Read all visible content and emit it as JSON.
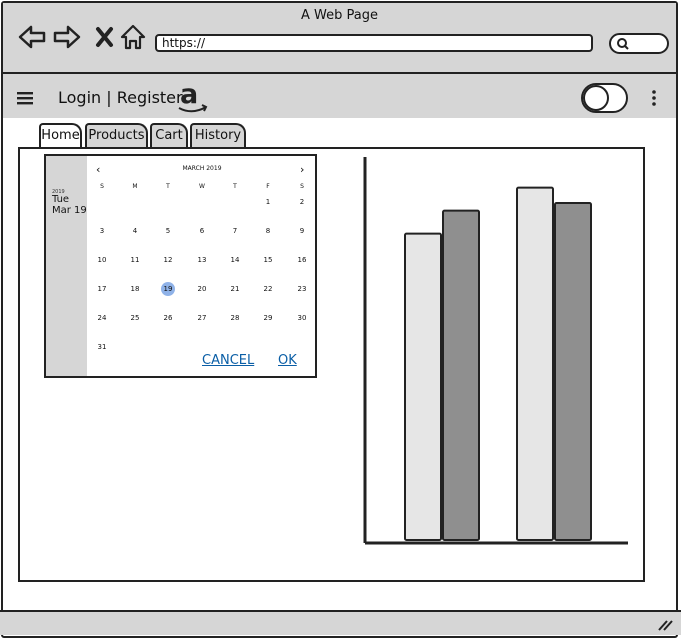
{
  "window": {
    "title": "A Web Page"
  },
  "address_bar": {
    "url": "https://"
  },
  "app": {
    "title": "Login | Register",
    "brand_logo": "a",
    "colors": {
      "chrome_gray": "#d6d6d6",
      "link_blue": "#0a5ea6",
      "bar_light": "#e6e6e6",
      "bar_dark": "#8f8f8f"
    }
  },
  "tabs": [
    {
      "label": "Home"
    },
    {
      "label": "Products"
    },
    {
      "label": "Cart"
    },
    {
      "label": "History"
    }
  ],
  "datepicker": {
    "year": "2019",
    "weekday": "Tue",
    "date": "Mar 19",
    "month_label": "MARCH 2019",
    "weekday_headers": [
      "S",
      "M",
      "T",
      "W",
      "T",
      "F",
      "S"
    ],
    "weeks": [
      [
        "",
        "",
        "",
        "",
        "",
        "1",
        "2"
      ],
      [
        "3",
        "4",
        "5",
        "6",
        "7",
        "8",
        "9"
      ],
      [
        "10",
        "11",
        "12",
        "13",
        "14",
        "15",
        "16"
      ],
      [
        "17",
        "18",
        "19",
        "20",
        "21",
        "22",
        "23"
      ],
      [
        "24",
        "25",
        "26",
        "27",
        "28",
        "29",
        "30"
      ],
      [
        "31",
        "",
        "",
        "",
        "",
        "",
        ""
      ]
    ],
    "selected_day": "19",
    "cancel_label": "CANCEL",
    "ok_label": "OK"
  },
  "chart_data": {
    "type": "bar",
    "categories": [
      "",
      ""
    ],
    "series": [
      {
        "values": [
          80,
          92
        ]
      },
      {
        "values": [
          86,
          88
        ]
      }
    ],
    "ylim": [
      0,
      100
    ],
    "grid": false,
    "title": "",
    "xlabel": "",
    "ylabel": ""
  }
}
